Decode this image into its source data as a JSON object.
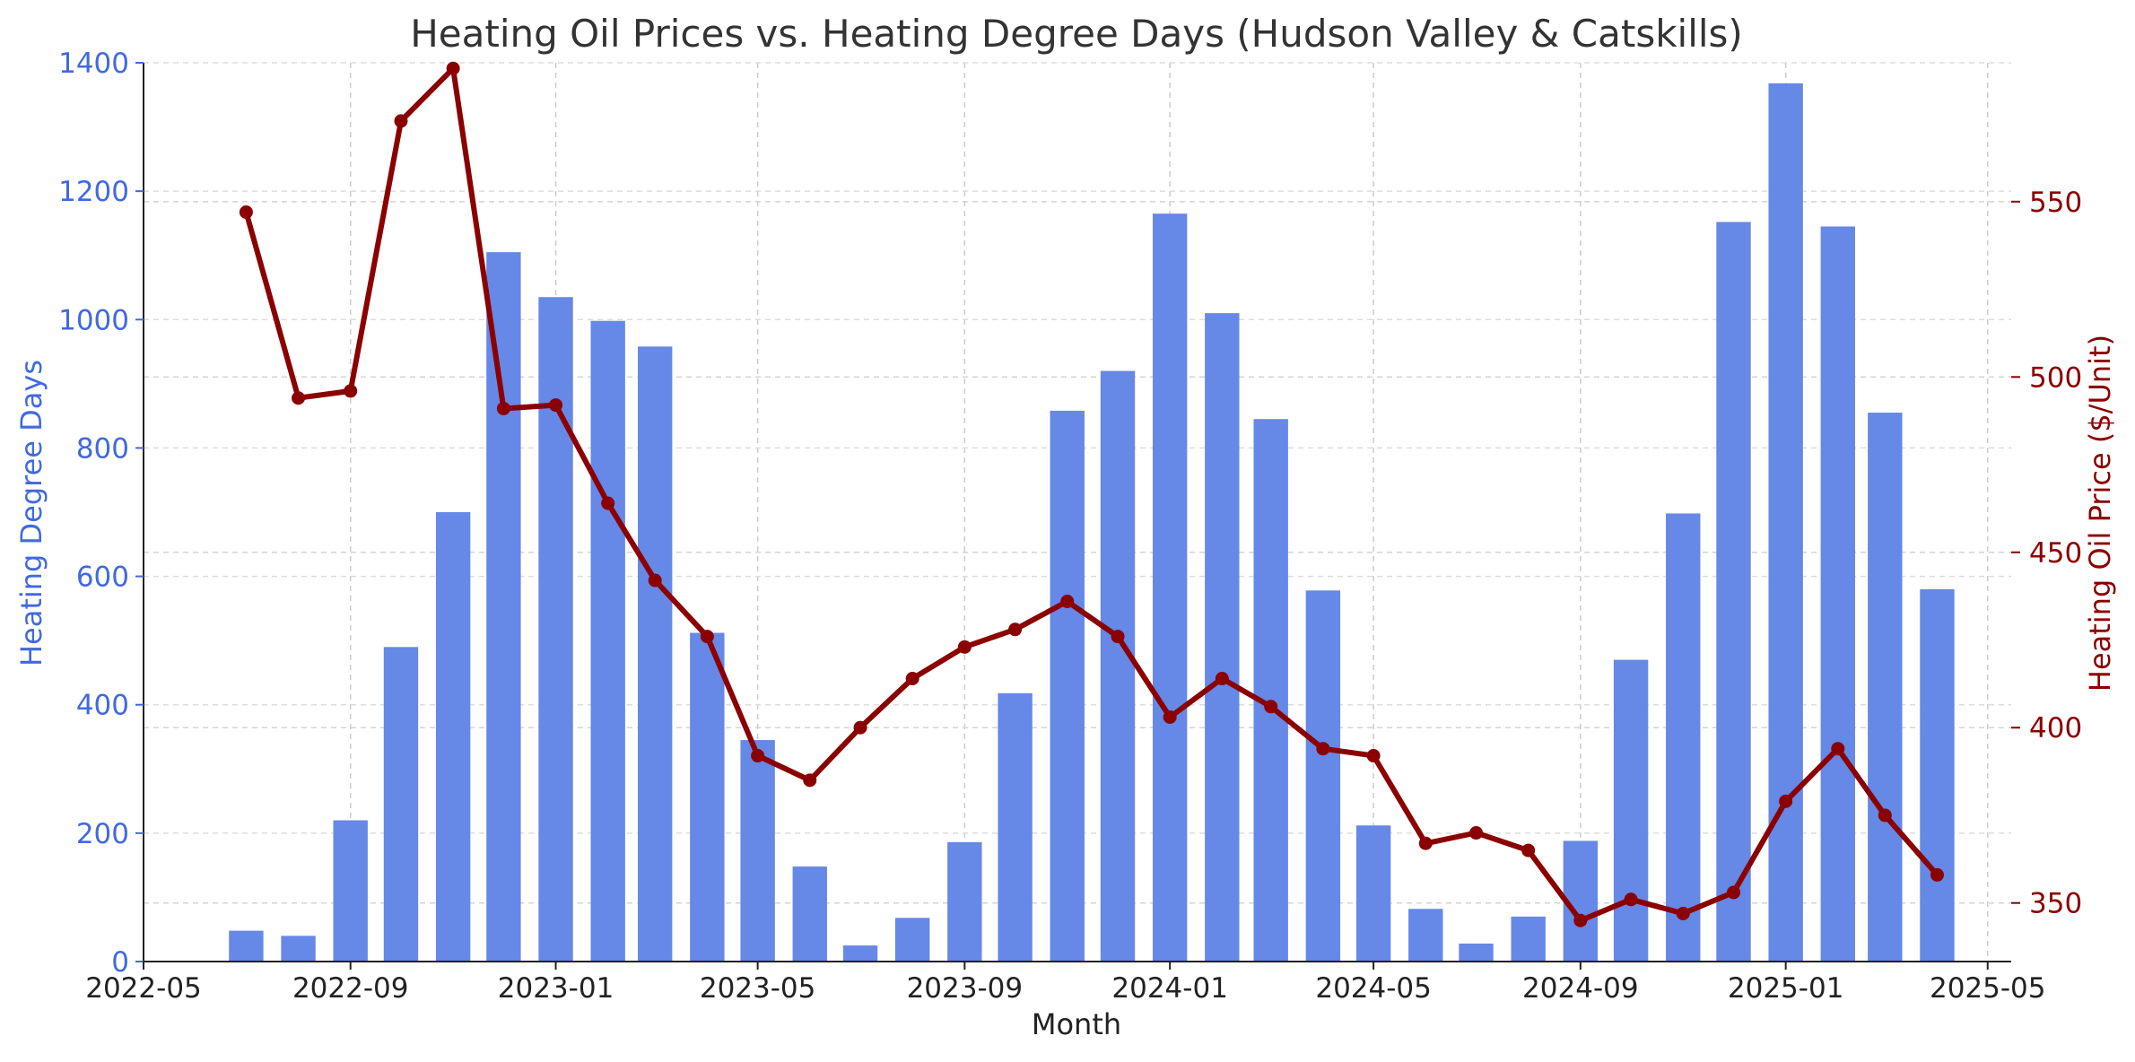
{
  "chart_data": {
    "type": "bar",
    "title": "Heating Oil Prices vs. Heating Degree Days (Hudson Valley & Catskills)",
    "xlabel": "Month",
    "ylabel_left": "Heating Degree Days",
    "ylabel_right": "Heating Oil Price ($/Unit)",
    "x_ticks": [
      "2022-05",
      "2022-09",
      "2023-01",
      "2023-05",
      "2023-09",
      "2024-01",
      "2024-05",
      "2024-09",
      "2025-01",
      "2025-05"
    ],
    "y_left_ticks": [
      0,
      200,
      400,
      600,
      800,
      1000,
      1200,
      1400
    ],
    "y_right_ticks": [
      350,
      400,
      450,
      500,
      550
    ],
    "y_left_lim": [
      0,
      1400
    ],
    "y_right_lim": [
      333.3,
      589.6
    ],
    "x_lim": [
      "2022-05-01",
      "2025-05-15"
    ],
    "grid": true,
    "colors": {
      "bars": "#6688E6",
      "line": "#8B0000",
      "left_axis": "#4169E1",
      "right_axis": "#8B0000"
    },
    "months": [
      "2022-07",
      "2022-08",
      "2022-09",
      "2022-10",
      "2022-11",
      "2022-12",
      "2023-01",
      "2023-02",
      "2023-03",
      "2023-04",
      "2023-05",
      "2023-06",
      "2023-07",
      "2023-08",
      "2023-09",
      "2023-10",
      "2023-11",
      "2023-12",
      "2024-01",
      "2024-02",
      "2024-03",
      "2024-04",
      "2024-05",
      "2024-06",
      "2024-07",
      "2024-08",
      "2024-09",
      "2024-10",
      "2024-11",
      "2024-12",
      "2025-01",
      "2025-02",
      "2025-03",
      "2025-04"
    ],
    "series": [
      {
        "name": "Heating Degree Days",
        "type": "bar",
        "axis": "left",
        "values": [
          48,
          40,
          220,
          490,
          700,
          1105,
          1035,
          998,
          958,
          512,
          345,
          148,
          25,
          68,
          186,
          418,
          858,
          920,
          1165,
          1010,
          845,
          578,
          212,
          82,
          28,
          70,
          188,
          470,
          698,
          1152,
          1368,
          1145,
          855,
          580
        ]
      },
      {
        "name": "Heating Oil Price",
        "type": "line",
        "axis": "right",
        "values": [
          547,
          494,
          496,
          573,
          588,
          491,
          492,
          464,
          442,
          426,
          392,
          385,
          400,
          414,
          423,
          428,
          436,
          426,
          403,
          414,
          406,
          394,
          392,
          367,
          370,
          365,
          345,
          351,
          347,
          353,
          379,
          394,
          375,
          358
        ]
      }
    ]
  }
}
